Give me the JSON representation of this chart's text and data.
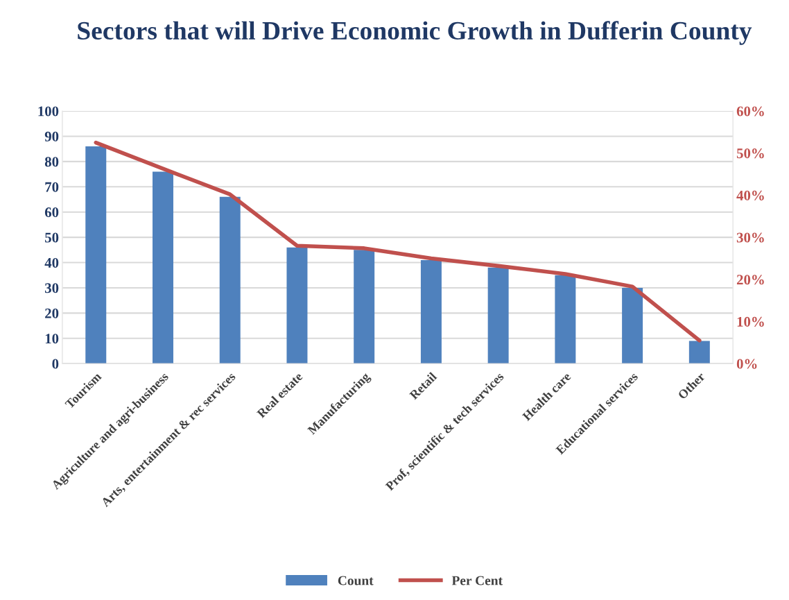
{
  "chart_data": {
    "type": "bar",
    "title": "Sectors that will Drive Economic Growth in Dufferin County",
    "categories": [
      "Tourism",
      "Agriculture and agri-business",
      "Arts, entertainment & rec services",
      "Real estate",
      "Manufacturing",
      "Retail",
      "Prof, scientific & tech services",
      "Health care",
      "Educational services",
      "Other"
    ],
    "series": [
      {
        "name": "Count",
        "color": "#4f81bd",
        "values": [
          86,
          76,
          66,
          46,
          45,
          41,
          38,
          35,
          30,
          9
        ]
      },
      {
        "name": "Per Cent",
        "type": "line",
        "axis": "y2",
        "color": "#c0504d",
        "values": [
          52.5,
          46.3,
          40.2,
          28.0,
          27.4,
          25.0,
          23.2,
          21.3,
          18.3,
          5.5
        ]
      }
    ],
    "ylim": [
      0,
      100
    ],
    "yticks": [
      0,
      10,
      20,
      30,
      40,
      50,
      60,
      70,
      80,
      90,
      100
    ],
    "y2lim": [
      0,
      60
    ],
    "y2ticks": [
      {
        "value": 0,
        "label": "0%"
      },
      {
        "value": 10,
        "label": "10%"
      },
      {
        "value": 20,
        "label": "20%"
      },
      {
        "value": 30,
        "label": "30%"
      },
      {
        "value": 40,
        "label": "40%"
      },
      {
        "value": 50,
        "label": "50%"
      },
      {
        "value": 60,
        "label": "60%"
      }
    ],
    "grid": "y",
    "legend": "bottom",
    "marker": "none",
    "line_style": "solid"
  }
}
